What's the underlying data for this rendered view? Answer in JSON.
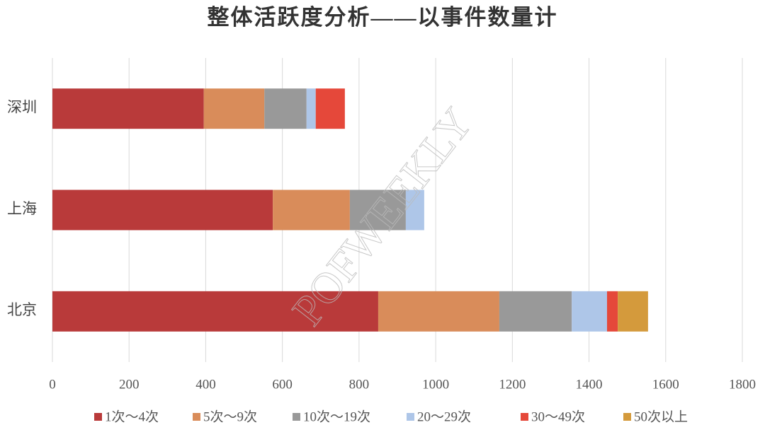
{
  "chart_data": {
    "type": "stacked-bar-horizontal",
    "title": "整体活跃度分析——以事件数量计",
    "watermark": "POFWEEKLY",
    "categories": [
      "深圳",
      "上海",
      "北京"
    ],
    "series": [
      {
        "name": "1次～4次",
        "color": "#b93a3a",
        "values": [
          395,
          575,
          850
        ]
      },
      {
        "name": "5次～9次",
        "color": "#d98c5a",
        "values": [
          158,
          201,
          316
        ]
      },
      {
        "name": "10次～19次",
        "color": "#999999",
        "values": [
          110,
          146,
          189
        ]
      },
      {
        "name": "20～29次",
        "color": "#aec6e8",
        "values": [
          24,
          48,
          92
        ]
      },
      {
        "name": "30～49次",
        "color": "#e5483a",
        "values": [
          76,
          0,
          28
        ]
      },
      {
        "name": "50次以上",
        "color": "#d49a3c",
        "values": [
          0,
          0,
          79
        ]
      }
    ],
    "xlim": [
      0,
      1800
    ],
    "xticks": [
      0,
      200,
      400,
      600,
      800,
      1000,
      1200,
      1400,
      1600,
      1800
    ],
    "grid": true,
    "legend": "bottom"
  }
}
